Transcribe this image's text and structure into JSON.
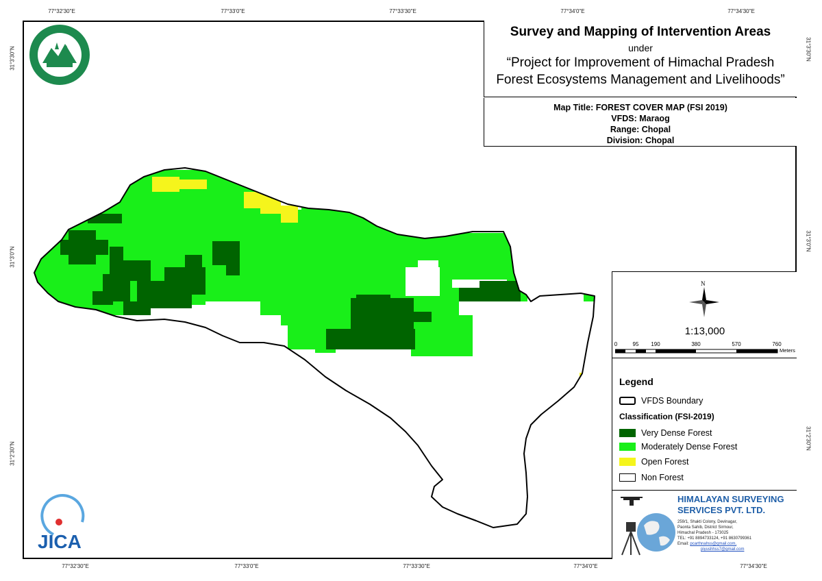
{
  "title": {
    "main": "Survey and Mapping of Intervention Areas",
    "under": "under",
    "project_line1": "“Project for Improvement of Himachal Pradesh",
    "project_line2": "Forest Ecosystems Management and Livelihoods”"
  },
  "info": {
    "map_title": "Map Title: FOREST COVER MAP (FSI 2019)",
    "vfds": "VFDS: Maraog",
    "range": "Range: Chopal",
    "division": "Division: Chopal"
  },
  "grid_labels": {
    "top": [
      "77°32'30\"E",
      "77°33'0\"E",
      "77°33'30\"E",
      "77°34'0\"E",
      "77°34'30\"E"
    ],
    "bottom": [
      "77°32'30\"E",
      "77°33'0\"E",
      "77°33'30\"E",
      "77°34'0\"E",
      "77°34'30\"E"
    ],
    "left": [
      "31°3'30\"N",
      "31°3'0\"N",
      "31°2'30\"N"
    ],
    "right": [
      "31°3'30\"N",
      "31°3'0\"N",
      "31°2'30\"N"
    ]
  },
  "scale": {
    "north": "N",
    "ratio": "1:13,000",
    "ticks": [
      "0",
      "95",
      "190",
      "380",
      "570",
      "760"
    ],
    "unit": "Meters"
  },
  "legend": {
    "title": "Legend",
    "boundary_label": "VFDS Boundary",
    "classification_title": "Classification (FSI-2019)",
    "classes": [
      {
        "label": "Very Dense Forest",
        "color": "#006400"
      },
      {
        "label": "Moderately Dense Forest",
        "color": "#19ef19"
      },
      {
        "label": "Open Forest",
        "color": "#f5f51c"
      },
      {
        "label": "Non Forest",
        "color": "#ffffff"
      }
    ]
  },
  "company": {
    "name_line1": "HIMALAYAN SURVEYING",
    "name_line2": "SERVICES PVT. LTD.",
    "addr1": "259/1, Shakti Colony, Devinagar,",
    "addr2": "Paonta Sahib, District Sirmour,",
    "addr3": "Himachal Pradesh - 173025",
    "tel": "TEL: +91 8894733124, +91 8630799361",
    "email_label": "Email:",
    "email1": "pcarthnahss@gmail.com,",
    "email2": "piyushhss7@gmail.com",
    "color": "#1f5fa8"
  },
  "logos": {
    "forest_seal": "Himachal Forest Department seal",
    "jica": "JICA"
  },
  "colors": {
    "very_dense": "#006400",
    "moderately_dense": "#19ef19",
    "open": "#f5f51c",
    "non_forest": "#ffffff",
    "seal_green": "#1d8a4e",
    "jica_blue": "#1b5fae"
  }
}
